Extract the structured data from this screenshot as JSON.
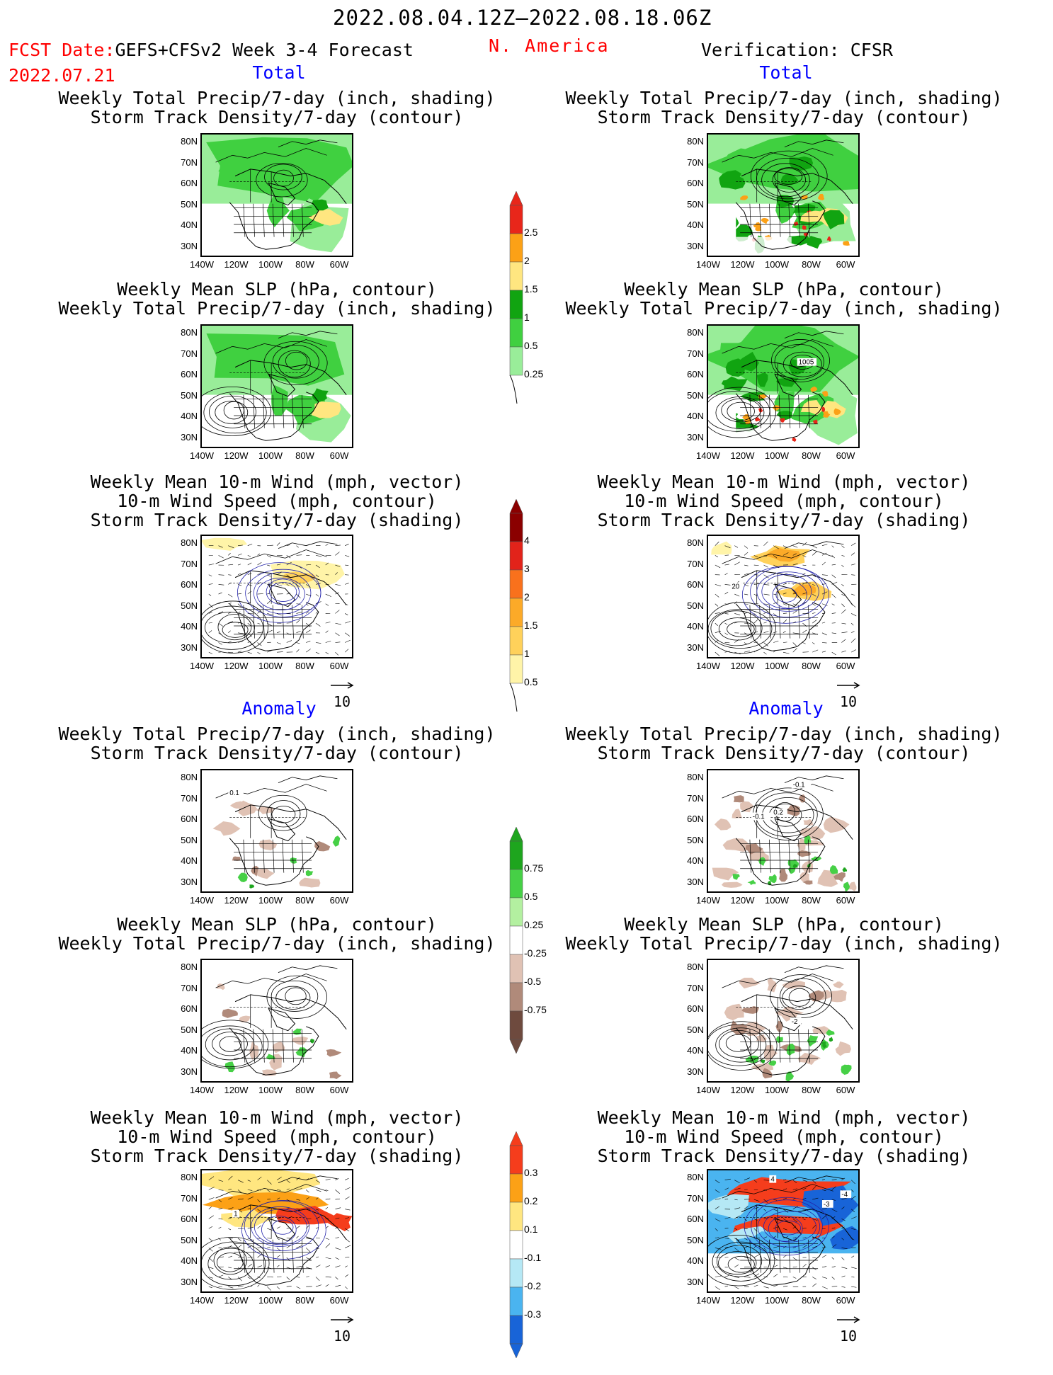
{
  "header": {
    "date_range": "2022.08.04.12Z–2022.08.18.06Z",
    "fcst_prefix": "FCST Date:",
    "fcst_model": "GEFS+CFSv2 Week 3-4 Forecast",
    "fcst_date": "2022.07.21",
    "region": "N. America",
    "verification": "Verification: CFSR"
  },
  "sections": {
    "total": "Total",
    "anomaly": "Anomaly"
  },
  "panel_titles": {
    "precip_storm": [
      "Weekly Total Precip/7-day (inch, shading)",
      "Storm Track Density/7-day (contour)"
    ],
    "slp_precip": [
      "Weekly Mean SLP (hPa, contour)",
      "Weekly Total Precip/7-day (inch, shading)"
    ],
    "wind_storm": [
      "Weekly Mean 10-m Wind (mph, vector)",
      "10-m Wind Speed (mph, contour)",
      "Storm Track Density/7-day (shading)"
    ]
  },
  "axes": {
    "lat_labels": [
      "80N",
      "70N",
      "60N",
      "50N",
      "40N",
      "30N"
    ],
    "lon_labels": [
      "140W",
      "120W",
      "100W",
      "80W",
      "60W"
    ]
  },
  "vector_ref": "10",
  "contour_labels": {
    "slp_verif": "1005",
    "anom_storm_forecast": "0.1",
    "anom_storm_verif_a": "-0.1",
    "anom_storm_verif_b": "-0.1",
    "anom_storm_verif_c": "0.2",
    "anom_slp_verif": "-2",
    "anom_wind_forecast": "1",
    "anom_wind_verif_a": "4",
    "anom_wind_verif_b": "-3",
    "anom_wind_verif_c": "-4",
    "wind_verif": "20"
  },
  "colorbars": {
    "precip_total": {
      "labels": [
        "2.5",
        "2",
        "1.5",
        "1",
        "0.5",
        "0.25"
      ],
      "colors": [
        "#e8261a",
        "#fca116",
        "#ffe680",
        "#11a411",
        "#40d040",
        "#99ed99"
      ]
    },
    "storm_total": {
      "labels": [
        "4",
        "3",
        "2",
        "1.5",
        "1",
        "0.5"
      ],
      "colors": [
        "#8b0000",
        "#e2231a",
        "#f9711c",
        "#fcaa28",
        "#ffd15a",
        "#fff4a8"
      ]
    },
    "precip_anom": {
      "labels": [
        "0.75",
        "0.5",
        "0.25",
        "-0.25",
        "-0.5",
        "-0.75"
      ],
      "colors": [
        "#1ea51e",
        "#46d046",
        "#b3f0a0",
        "#ffffff",
        "#e0c2b4",
        "#b08a7a",
        "#6e4a3e"
      ]
    },
    "storm_anom": {
      "labels": [
        "0.3",
        "0.2",
        "0.1",
        "-0.1",
        "-0.2",
        "-0.3"
      ],
      "colors": [
        "#f53d1c",
        "#fca116",
        "#ffe680",
        "#ffffff",
        "#b5e8f5",
        "#4ab4f0",
        "#1864d8"
      ]
    }
  }
}
